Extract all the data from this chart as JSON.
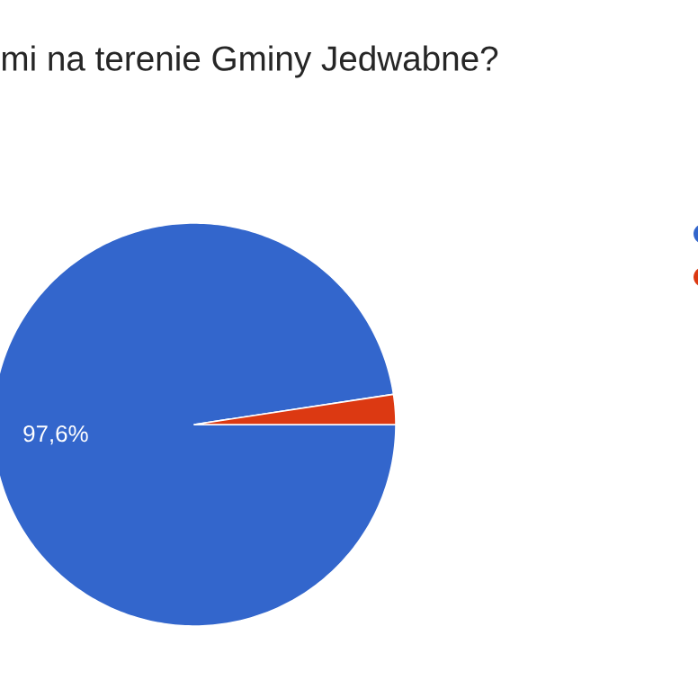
{
  "chart_data": {
    "type": "pie",
    "title": "mi na terenie Gminy Jedwabne?",
    "categories": [
      null,
      null
    ],
    "values": [
      97.6,
      2.4
    ],
    "colors": [
      "#3366cc",
      "#dc3912"
    ],
    "value_labels": [
      "97,6%",
      null
    ]
  }
}
